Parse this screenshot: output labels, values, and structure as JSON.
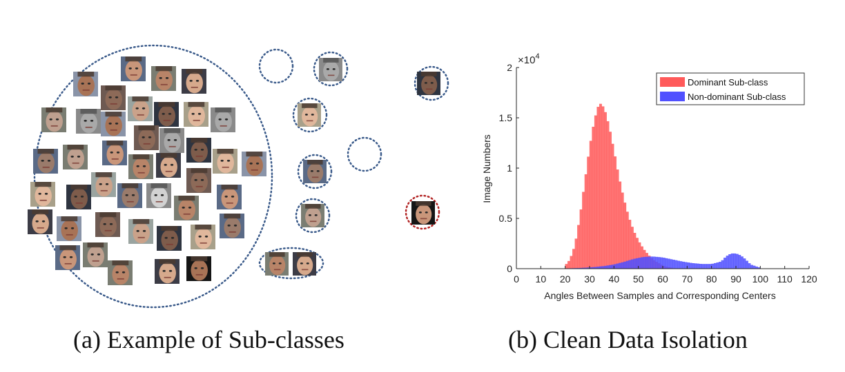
{
  "captions": {
    "a": "(a) Example of Sub-classes",
    "b": "(b) Clean Data Isolation"
  },
  "colors": {
    "dominant": "#ff5a5a",
    "non_dominant": "#5050ff",
    "dotted_blue": "#3a5a8a",
    "dotted_red": "#b22222"
  },
  "chart_data": {
    "type": "bar",
    "title": "",
    "xlabel": "Angles Between Samples and Corresponding Centers",
    "ylabel": "Image Numbers",
    "y_multiplier": "×10^4",
    "xlim": [
      0,
      120
    ],
    "ylim": [
      0,
      20000
    ],
    "xticks": [
      0,
      10,
      20,
      30,
      40,
      50,
      60,
      70,
      80,
      90,
      100,
      110,
      120
    ],
    "yticks": [
      0,
      5000,
      10000,
      15000,
      20000
    ],
    "ytick_labels": [
      "0",
      "0.5",
      "1",
      "1.5",
      "2"
    ],
    "legend_position": "top-right",
    "grid": false,
    "series": [
      {
        "name": "Dominant Sub-class",
        "x": [
          20,
          22,
          24,
          26,
          28,
          30,
          32,
          34,
          36,
          38,
          40,
          42,
          44,
          46,
          48,
          50,
          52,
          54,
          56,
          58,
          60,
          62,
          64
        ],
        "values": [
          300,
          900,
          2300,
          5000,
          8500,
          12000,
          14800,
          16500,
          16000,
          14200,
          11800,
          9200,
          7000,
          5200,
          3800,
          2800,
          2000,
          1400,
          900,
          600,
          300,
          150,
          60
        ]
      },
      {
        "name": "Non-dominant Sub-class",
        "x": [
          20,
          24,
          28,
          32,
          36,
          40,
          44,
          48,
          52,
          56,
          60,
          64,
          68,
          72,
          76,
          80,
          84,
          86,
          88,
          90,
          92,
          94,
          96,
          100
        ],
        "values": [
          20,
          40,
          80,
          150,
          250,
          400,
          650,
          950,
          1150,
          1200,
          1100,
          900,
          700,
          550,
          450,
          450,
          700,
          1200,
          1500,
          1500,
          1300,
          900,
          400,
          80
        ]
      }
    ]
  }
}
